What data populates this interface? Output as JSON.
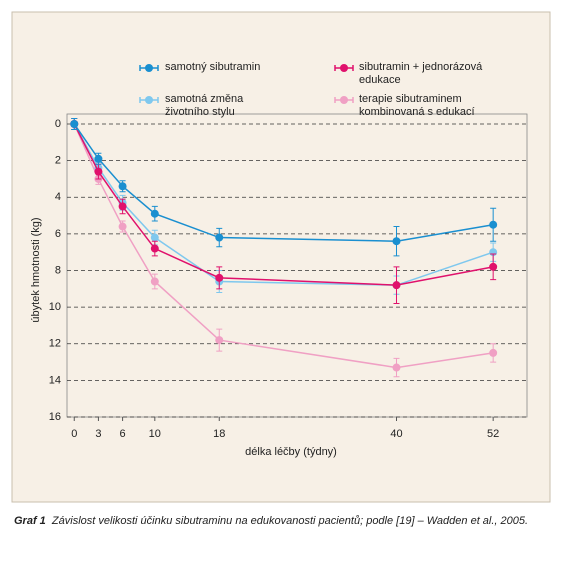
{
  "chart_data": {
    "type": "line",
    "x": [
      0,
      3,
      6,
      10,
      18,
      40,
      52
    ],
    "xlim": [
      -0.9,
      56.2
    ],
    "xticks": [
      0,
      3,
      6,
      10,
      18,
      40,
      52
    ],
    "ylim": [
      0,
      16
    ],
    "yticks": [
      0,
      2,
      4,
      6,
      8,
      10,
      12,
      14,
      16
    ],
    "y_inverted": true,
    "grid": true,
    "xlabel": "délka léčby (týdny)",
    "ylabel": "úbytek hmotnosti (kg)",
    "series": [
      {
        "name": "samotný sibutramin",
        "color": "#1a8fd0",
        "values": [
          0,
          1.9,
          3.4,
          4.9,
          6.2,
          6.4,
          5.5
        ],
        "errors": [
          0.3,
          0.3,
          0.3,
          0.4,
          0.5,
          0.8,
          0.9
        ]
      },
      {
        "name": "sibutramin + jednorázová edukace",
        "color": "#e0116c",
        "values": [
          0,
          2.6,
          4.5,
          6.8,
          8.4,
          8.8,
          7.8
        ],
        "errors": [
          0.3,
          0.4,
          0.4,
          0.4,
          0.6,
          1.0,
          0.7
        ]
      },
      {
        "name": "samotná změna životního stylu",
        "color": "#7fc8ee",
        "values": [
          0,
          2.4,
          4.3,
          6.2,
          8.6,
          8.8,
          7.0
        ],
        "errors": [
          0.3,
          0.3,
          0.4,
          0.4,
          0.6,
          0.5,
          0.5
        ]
      },
      {
        "name": "terapie sibutraminem kombinovaná s edukací",
        "color": "#f0a0c4",
        "values": [
          0,
          3.0,
          5.6,
          8.6,
          11.8,
          13.3,
          12.5
        ],
        "errors": [
          0.3,
          0.3,
          0.3,
          0.4,
          0.6,
          0.5,
          0.5
        ]
      }
    ],
    "caption_label": "Graf 1",
    "caption": "Závislost velikosti účinku sibutraminu na edukovanosti pacientů; podle [19] – Wadden et al., 2005."
  }
}
